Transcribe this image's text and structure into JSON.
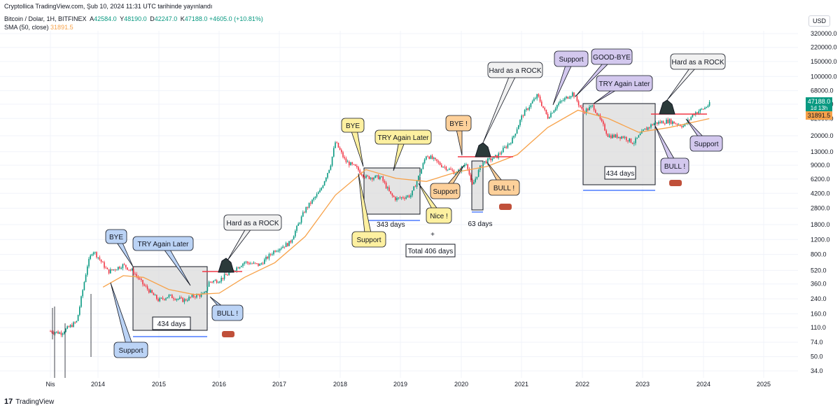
{
  "header": {
    "publisher_line": "Cryptollica TradingView.com, Şub 10, 2024 11:31 UTC tarihinde yayınlandı",
    "symbol": "Bitcoin / Dolar, 1H, BITFINEX",
    "open_label": "A",
    "open_value": "42584.0",
    "high_label": "Y",
    "high_value": "48190.0",
    "low_label": "D",
    "low_value": "42247.0",
    "close_label": "K",
    "close_value": "47188.0",
    "change": "+4605.0 (+10.81%)",
    "sma_label": "SMA (50, close)",
    "sma_value": "31891.5"
  },
  "currency_button": "USD",
  "footer": {
    "brand": "TradingView"
  },
  "price_tag": {
    "price": "47188.0",
    "time": "1d 13h",
    "sma": "31891.5",
    "price_color": "#089981",
    "sma_color": "#f7a24a"
  },
  "colors": {
    "up": "#089981",
    "down": "#f23645",
    "sma": "#f7a24a",
    "blue_bubble": "#bbd3f5",
    "yellow_bubble": "#fdf0a0",
    "orange_bubble": "#fdd09a",
    "purple_bubble": "#d3c8ee",
    "gray_bubble": "#f1f1f1",
    "box_fill": "#d9d9d9"
  },
  "chart_data": {
    "type": "line",
    "scale": "log",
    "series": [
      {
        "name": "",
        "type": "candlestick-approx",
        "points": [
          [
            "2013-04",
            100
          ],
          [
            "2013-06",
            95
          ],
          [
            "2013-09",
            130
          ],
          [
            "2013-11",
            600
          ],
          [
            "2013-12",
            900
          ],
          [
            "2014-01",
            750
          ],
          [
            "2014-03",
            500
          ],
          [
            "2014-06",
            600
          ],
          [
            "2014-08",
            500
          ],
          [
            "2014-10",
            350
          ],
          [
            "2015-01",
            230
          ],
          [
            "2015-03",
            260
          ],
          [
            "2015-06",
            230
          ],
          [
            "2015-08",
            260
          ],
          [
            "2015-10",
            270
          ],
          [
            "2015-11",
            380
          ],
          [
            "2016-01",
            400
          ],
          [
            "2016-06",
            650
          ],
          [
            "2016-09",
            600
          ],
          [
            "2016-12",
            900
          ],
          [
            "2017-03",
            1100
          ],
          [
            "2017-06",
            2700
          ],
          [
            "2017-09",
            4500
          ],
          [
            "2017-11",
            9000
          ],
          [
            "2017-12",
            17000
          ],
          [
            "2018-02",
            10000
          ],
          [
            "2018-04",
            8500
          ],
          [
            "2018-06",
            6500
          ],
          [
            "2018-09",
            6500
          ],
          [
            "2018-11",
            4000
          ],
          [
            "2018-12",
            3600
          ],
          [
            "2019-03",
            4000
          ],
          [
            "2019-05",
            8000
          ],
          [
            "2019-06",
            12000
          ],
          [
            "2019-09",
            9000
          ],
          [
            "2019-12",
            7200
          ],
          [
            "2020-02",
            9800
          ],
          [
            "2020-03",
            5000
          ],
          [
            "2020-05",
            9500
          ],
          [
            "2020-08",
            11500
          ],
          [
            "2020-11",
            18000
          ],
          [
            "2021-01",
            35000
          ],
          [
            "2021-04",
            60000
          ],
          [
            "2021-06",
            33000
          ],
          [
            "2021-08",
            47000
          ],
          [
            "2021-11",
            64000
          ],
          [
            "2022-01",
            38000
          ],
          [
            "2022-03",
            45000
          ],
          [
            "2022-06",
            20000
          ],
          [
            "2022-09",
            19500
          ],
          [
            "2022-11",
            16500
          ],
          [
            "2023-01",
            23000
          ],
          [
            "2023-03",
            28000
          ],
          [
            "2023-06",
            30000
          ],
          [
            "2023-09",
            26000
          ],
          [
            "2023-11",
            37000
          ],
          [
            "2024-01",
            42000
          ],
          [
            "2024-02",
            47188
          ]
        ]
      },
      {
        "name": "SMA (50, close)",
        "points": [
          [
            "2014-02",
            330
          ],
          [
            "2014-06",
            450
          ],
          [
            "2014-10",
            430
          ],
          [
            "2015-03",
            310
          ],
          [
            "2015-08",
            270
          ],
          [
            "2016-01",
            280
          ],
          [
            "2016-06",
            430
          ],
          [
            "2016-12",
            640
          ],
          [
            "2017-06",
            1300
          ],
          [
            "2017-12",
            4000
          ],
          [
            "2018-06",
            8000
          ],
          [
            "2018-12",
            6300
          ],
          [
            "2019-06",
            5800
          ],
          [
            "2019-12",
            7500
          ],
          [
            "2020-06",
            8700
          ],
          [
            "2020-12",
            12000
          ],
          [
            "2021-06",
            25000
          ],
          [
            "2021-12",
            40000
          ],
          [
            "2022-06",
            32000
          ],
          [
            "2022-12",
            22000
          ],
          [
            "2023-06",
            25000
          ],
          [
            "2023-12",
            30000
          ],
          [
            "2024-02",
            31891.5
          ]
        ]
      }
    ],
    "y_ticks": [
      "34.0",
      "50.0",
      "74.0",
      "110.0",
      "160.0",
      "240.0",
      "360.0",
      "520.0",
      "800.0",
      "1200.0",
      "1800.0",
      "2800.0",
      "4200.0",
      "6200.0",
      "9000.0",
      "13000.0",
      "20000.0",
      "32000.0",
      "47188.0",
      "68000.0",
      "100000.0",
      "150000.0",
      "220000.0",
      "320000.0"
    ],
    "x_ticks": [
      "Nis",
      "2014",
      "2015",
      "2016",
      "2017",
      "2018",
      "2019",
      "2020",
      "2021",
      "2022",
      "2023",
      "2024",
      "2025"
    ],
    "annotations": {
      "bye_1": "BYE",
      "try_1": "TRY Again Later",
      "rock_1": "Hard as a ROCK",
      "bull_1": "BULL !",
      "support_1": "Support",
      "days_1": "434 days",
      "bye_2": "BYE",
      "try_2": "TRY Again Later",
      "support_2": "Support",
      "nice_2": "Nice !",
      "days_2": "343 days",
      "plus": "+",
      "total": "Total 406 days",
      "bye_3": "BYE !",
      "rock_3": "Hard as a ROCK",
      "support_3": "Support",
      "bull_3": "BULL !",
      "days_3": "63 days",
      "support_4": "Support",
      "goodbye_4": "GOOD-BYE",
      "try_4": "TRY Again Later",
      "rock_4": "Hard as a ROCK",
      "support_4b": "Support",
      "bull_4": "BULL !",
      "days_4": "434 days"
    }
  }
}
